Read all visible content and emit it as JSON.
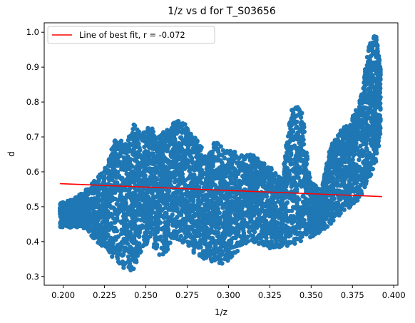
{
  "chart_data": {
    "type": "scatter",
    "title": "1/z vs d for T_S03656",
    "xlabel": "1/z",
    "ylabel": "d",
    "xlim": [
      0.1885,
      0.4025
    ],
    "ylim": [
      0.275,
      1.027
    ],
    "xticks": [
      "0.200",
      "0.225",
      "0.250",
      "0.275",
      "0.300",
      "0.325",
      "0.350",
      "0.375",
      "0.400"
    ],
    "yticks": [
      "0.3",
      "0.4",
      "0.5",
      "0.6",
      "0.7",
      "0.8",
      "0.9",
      "1.0"
    ],
    "grid": false,
    "legend": {
      "placement": "top-left",
      "entries": [
        "Line of best fit, r = -0.072"
      ]
    },
    "colors": {
      "points": "#1f77b4",
      "fit_line": "#ff0000"
    },
    "series": [
      {
        "kind": "scatter-region",
        "x": [
          0.198,
          0.205,
          0.212,
          0.22,
          0.226,
          0.232,
          0.238,
          0.243,
          0.248,
          0.252,
          0.257,
          0.262,
          0.267,
          0.272,
          0.277,
          0.282,
          0.287,
          0.292,
          0.297,
          0.302,
          0.308,
          0.314,
          0.32,
          0.326,
          0.332,
          0.338,
          0.344,
          0.35,
          0.356,
          0.362,
          0.368,
          0.374,
          0.38,
          0.385,
          0.389,
          0.392
        ],
        "y_low": [
          0.44,
          0.44,
          0.44,
          0.4,
          0.38,
          0.34,
          0.32,
          0.31,
          0.38,
          0.4,
          0.36,
          0.36,
          0.41,
          0.4,
          0.37,
          0.36,
          0.34,
          0.34,
          0.33,
          0.35,
          0.38,
          0.4,
          0.39,
          0.38,
          0.38,
          0.39,
          0.4,
          0.41,
          0.43,
          0.45,
          0.48,
          0.5,
          0.52,
          0.58,
          0.62,
          0.7
        ],
        "y_high": [
          0.51,
          0.52,
          0.54,
          0.58,
          0.62,
          0.7,
          0.68,
          0.74,
          0.71,
          0.74,
          0.7,
          0.72,
          0.74,
          0.75,
          0.71,
          0.69,
          0.64,
          0.69,
          0.67,
          0.66,
          0.65,
          0.65,
          0.63,
          0.61,
          0.58,
          0.78,
          0.8,
          0.57,
          0.55,
          0.68,
          0.72,
          0.75,
          0.82,
          0.96,
          1.0,
          0.9
        ]
      }
    ],
    "fit_line": {
      "x": [
        0.198,
        0.393
      ],
      "y": [
        0.566,
        0.529
      ]
    }
  }
}
